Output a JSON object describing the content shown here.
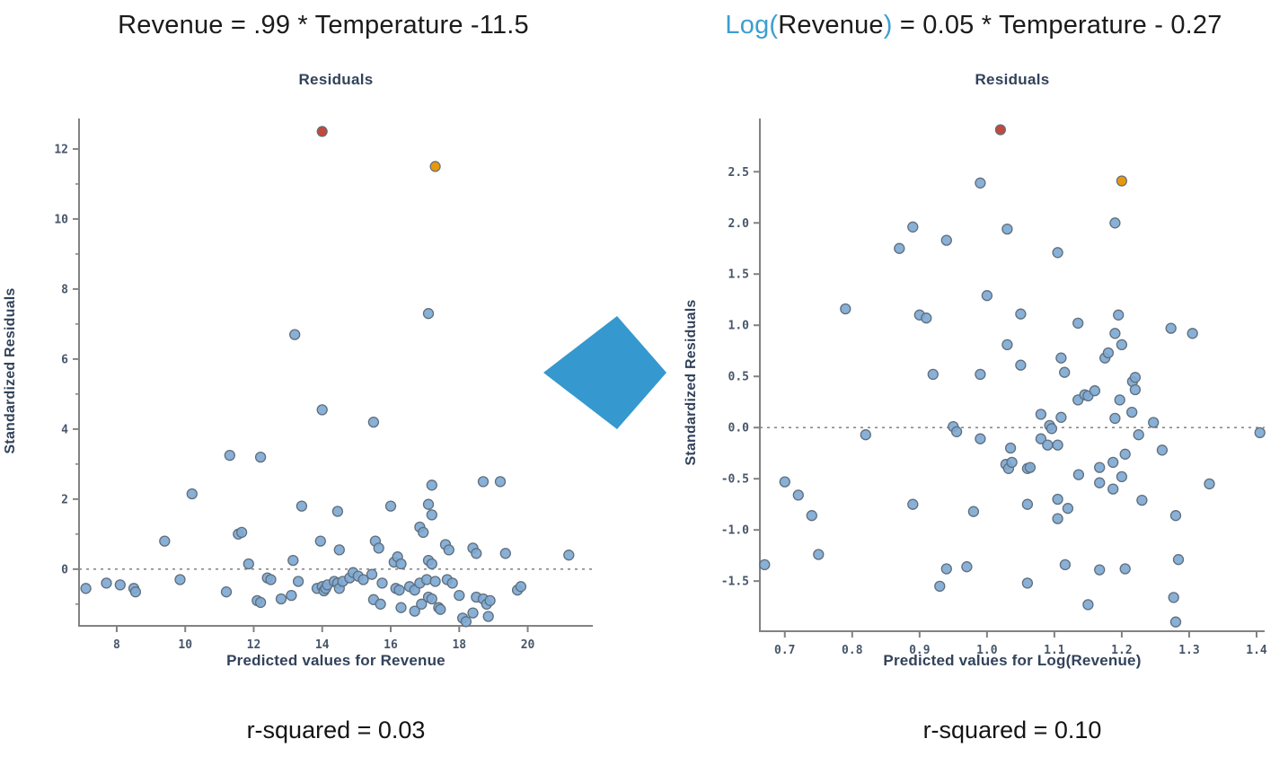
{
  "arrow": {
    "color": "#3598cf",
    "direction": "right"
  },
  "chart_data": [
    {
      "type": "scatter",
      "equation_segments": [
        {
          "text": "Revenue = .99 * Temperature -11.5",
          "color": "#1b1b1b"
        }
      ],
      "title": "Residuals",
      "xlabel": "Predicted values for Revenue",
      "ylabel": "Standardized Residuals",
      "r_squared_value": 0.03,
      "r_squared_text": "r-squared = 0.03",
      "xlim": [
        6.9,
        21.9
      ],
      "ylim": [
        -1.62,
        12.87
      ],
      "grid": false,
      "legend": "none",
      "x_ticks": [
        {
          "v": 8,
          "label": "8"
        },
        {
          "v": 10,
          "label": "10"
        },
        {
          "v": 12,
          "label": "12"
        },
        {
          "v": 14,
          "label": "14"
        },
        {
          "v": 16,
          "label": "16"
        },
        {
          "v": 18,
          "label": "18"
        },
        {
          "v": 20,
          "label": "20"
        }
      ],
      "y_ticks": [
        {
          "v": 0,
          "label": "0"
        },
        {
          "v": 2,
          "label": "2"
        },
        {
          "v": 4,
          "label": "4"
        },
        {
          "v": 6,
          "label": "6"
        },
        {
          "v": 8,
          "label": "8"
        },
        {
          "v": 10,
          "label": "10"
        },
        {
          "v": 12,
          "label": "12"
        }
      ],
      "y_minor_ticks": [
        -1,
        1,
        3,
        5,
        7,
        9,
        11
      ],
      "zero_line_y": 0,
      "style": {
        "point_fill": "#7fa9d3",
        "point_stroke": "#5f6e7c",
        "axis_color": "#828282",
        "tick_label_color": "#47566a",
        "dashed_line_color": "#8a8a8a"
      },
      "highlight_points": [
        {
          "x": 14.0,
          "y": 12.5,
          "color": "#c14a3c",
          "name": "red-outlier"
        },
        {
          "x": 17.3,
          "y": 11.5,
          "color": "#e6980e",
          "name": "orange-outlier"
        }
      ],
      "points": [
        [
          7.1,
          -0.55
        ],
        [
          7.7,
          -0.4
        ],
        [
          8.1,
          -0.45
        ],
        [
          8.5,
          -0.55
        ],
        [
          8.55,
          -0.65
        ],
        [
          9.4,
          0.8
        ],
        [
          9.85,
          -0.3
        ],
        [
          10.2,
          2.15
        ],
        [
          11.2,
          -0.65
        ],
        [
          11.3,
          3.25
        ],
        [
          11.55,
          1.0
        ],
        [
          11.65,
          1.05
        ],
        [
          11.85,
          0.15
        ],
        [
          12.1,
          -0.9
        ],
        [
          12.2,
          -0.95
        ],
        [
          12.2,
          3.2
        ],
        [
          12.4,
          -0.25
        ],
        [
          12.5,
          -0.3
        ],
        [
          12.8,
          -0.85
        ],
        [
          13.1,
          -0.75
        ],
        [
          13.15,
          0.25
        ],
        [
          13.2,
          6.7
        ],
        [
          13.3,
          -0.35
        ],
        [
          13.4,
          1.8
        ],
        [
          13.85,
          -0.55
        ],
        [
          13.95,
          0.8
        ],
        [
          14.0,
          4.55
        ],
        [
          14.0,
          -0.5
        ],
        [
          14.05,
          -0.62
        ],
        [
          14.1,
          -0.55
        ],
        [
          14.15,
          -0.45
        ],
        [
          14.35,
          -0.35
        ],
        [
          14.45,
          -0.4
        ],
        [
          14.45,
          1.65
        ],
        [
          14.5,
          0.55
        ],
        [
          14.5,
          -0.55
        ],
        [
          14.6,
          -0.35
        ],
        [
          14.8,
          -0.25
        ],
        [
          14.9,
          -0.1
        ],
        [
          15.05,
          -0.2
        ],
        [
          15.2,
          -0.3
        ],
        [
          15.45,
          -0.15
        ],
        [
          15.5,
          -0.87
        ],
        [
          15.5,
          4.2
        ],
        [
          15.55,
          0.8
        ],
        [
          15.65,
          0.6
        ],
        [
          15.7,
          -1.0
        ],
        [
          15.75,
          -0.4
        ],
        [
          16.0,
          1.8
        ],
        [
          16.1,
          0.2
        ],
        [
          16.15,
          -0.55
        ],
        [
          16.2,
          0.35
        ],
        [
          16.25,
          -0.6
        ],
        [
          16.3,
          0.15
        ],
        [
          16.3,
          -1.1
        ],
        [
          16.55,
          -0.5
        ],
        [
          16.7,
          -0.6
        ],
        [
          16.7,
          -1.2
        ],
        [
          16.85,
          1.2
        ],
        [
          16.85,
          -0.4
        ],
        [
          16.9,
          -1.0
        ],
        [
          16.95,
          1.05
        ],
        [
          17.05,
          -0.3
        ],
        [
          17.1,
          1.85
        ],
        [
          17.1,
          0.25
        ],
        [
          17.1,
          -0.8
        ],
        [
          17.1,
          7.3
        ],
        [
          17.2,
          2.4
        ],
        [
          17.2,
          1.55
        ],
        [
          17.2,
          0.15
        ],
        [
          17.2,
          -0.85
        ],
        [
          17.3,
          -0.35
        ],
        [
          17.4,
          -1.1
        ],
        [
          17.45,
          -1.15
        ],
        [
          17.6,
          0.7
        ],
        [
          17.65,
          -0.3
        ],
        [
          17.7,
          0.55
        ],
        [
          17.8,
          -0.4
        ],
        [
          18.0,
          -0.75
        ],
        [
          18.1,
          -1.4
        ],
        [
          18.2,
          -1.5
        ],
        [
          18.4,
          0.6
        ],
        [
          18.4,
          -1.25
        ],
        [
          18.5,
          0.45
        ],
        [
          18.5,
          -0.8
        ],
        [
          18.7,
          2.5
        ],
        [
          18.7,
          -0.85
        ],
        [
          18.8,
          -1.0
        ],
        [
          18.85,
          -1.35
        ],
        [
          18.9,
          -0.9
        ],
        [
          19.2,
          2.5
        ],
        [
          19.35,
          0.45
        ],
        [
          19.7,
          -0.6
        ],
        [
          19.8,
          -0.5
        ],
        [
          21.2,
          0.4
        ]
      ]
    },
    {
      "type": "scatter",
      "equation_segments": [
        {
          "text": "Log(",
          "color": "#3d9ecf"
        },
        {
          "text": "Revenue",
          "color": "#1b1b1b"
        },
        {
          "text": ")",
          "color": "#3d9ecf"
        },
        {
          "text": " = 0.05 * Temperature - 0.27",
          "color": "#1b1b1b"
        }
      ],
      "title": "Residuals",
      "xlabel": "Predicted values for Log(Revenue)",
      "ylabel": "Standardized Residuals",
      "r_squared_value": 0.1,
      "r_squared_text": "r-squared = 0.10",
      "xlim": [
        0.663,
        1.412
      ],
      "ylim": [
        -1.99,
        3.02
      ],
      "grid": false,
      "legend": "none",
      "x_ticks": [
        {
          "v": 0.7,
          "label": "0.7"
        },
        {
          "v": 0.8,
          "label": "0.8"
        },
        {
          "v": 0.9,
          "label": "0.9"
        },
        {
          "v": 1.0,
          "label": "1.0"
        },
        {
          "v": 1.1,
          "label": "1.1"
        },
        {
          "v": 1.2,
          "label": "1.2"
        },
        {
          "v": 1.3,
          "label": "1.3"
        },
        {
          "v": 1.4,
          "label": "1.4"
        }
      ],
      "y_ticks": [
        {
          "v": -1.5,
          "label": "-1.5"
        },
        {
          "v": -1.0,
          "label": "-1.0"
        },
        {
          "v": -0.5,
          "label": "-0.5"
        },
        {
          "v": 0.0,
          "label": "0.0"
        },
        {
          "v": 0.5,
          "label": "0.5"
        },
        {
          "v": 1.0,
          "label": "1.0"
        },
        {
          "v": 1.5,
          "label": "1.5"
        },
        {
          "v": 2.0,
          "label": "2.0"
        },
        {
          "v": 2.5,
          "label": "2.5"
        }
      ],
      "y_minor_ticks": [],
      "zero_line_y": 0,
      "style": {
        "point_fill": "#7fa9d3",
        "point_stroke": "#5f6e7c",
        "axis_color": "#828282",
        "tick_label_color": "#47566a",
        "dashed_line_color": "#8a8a8a"
      },
      "highlight_points": [
        {
          "x": 1.02,
          "y": 2.91,
          "color": "#c14a3c",
          "name": "red-outlier"
        },
        {
          "x": 1.2,
          "y": 2.41,
          "color": "#e6980e",
          "name": "orange-outlier"
        }
      ],
      "points": [
        [
          0.67,
          -1.34
        ],
        [
          0.7,
          -0.53
        ],
        [
          0.72,
          -0.66
        ],
        [
          0.74,
          -0.86
        ],
        [
          0.75,
          -1.24
        ],
        [
          0.79,
          1.16
        ],
        [
          0.82,
          -0.07
        ],
        [
          0.87,
          1.75
        ],
        [
          0.89,
          1.96
        ],
        [
          0.89,
          -0.75
        ],
        [
          0.9,
          1.1
        ],
        [
          0.91,
          1.07
        ],
        [
          0.92,
          0.52
        ],
        [
          0.93,
          -1.55
        ],
        [
          0.94,
          -1.38
        ],
        [
          0.94,
          1.83
        ],
        [
          0.95,
          0.01
        ],
        [
          0.955,
          -0.04
        ],
        [
          0.97,
          -1.36
        ],
        [
          0.98,
          -0.82
        ],
        [
          0.99,
          2.39
        ],
        [
          0.99,
          0.52
        ],
        [
          0.99,
          -0.11
        ],
        [
          1.0,
          1.29
        ],
        [
          1.03,
          1.94
        ],
        [
          1.03,
          0.81
        ],
        [
          1.035,
          -0.2
        ],
        [
          1.028,
          -0.36
        ],
        [
          1.032,
          -0.4
        ],
        [
          1.037,
          -0.34
        ],
        [
          1.05,
          1.11
        ],
        [
          1.05,
          0.61
        ],
        [
          1.06,
          -0.4
        ],
        [
          1.06,
          -0.75
        ],
        [
          1.06,
          -1.52
        ],
        [
          1.064,
          -0.39
        ],
        [
          1.08,
          0.13
        ],
        [
          1.08,
          -0.11
        ],
        [
          1.09,
          -0.17
        ],
        [
          1.093,
          0.02
        ],
        [
          1.096,
          -0.01
        ],
        [
          1.105,
          1.71
        ],
        [
          1.105,
          -0.17
        ],
        [
          1.105,
          -0.7
        ],
        [
          1.105,
          -0.89
        ],
        [
          1.11,
          0.68
        ],
        [
          1.11,
          0.1
        ],
        [
          1.115,
          0.54
        ],
        [
          1.116,
          -1.34
        ],
        [
          1.12,
          -0.79
        ],
        [
          1.135,
          1.02
        ],
        [
          1.135,
          0.27
        ],
        [
          1.136,
          -0.46
        ],
        [
          1.145,
          0.32
        ],
        [
          1.15,
          0.31
        ],
        [
          1.15,
          -1.73
        ],
        [
          1.16,
          0.36
        ],
        [
          1.167,
          -0.39
        ],
        [
          1.167,
          -0.54
        ],
        [
          1.167,
          -1.39
        ],
        [
          1.175,
          0.68
        ],
        [
          1.18,
          0.73
        ],
        [
          1.187,
          -0.34
        ],
        [
          1.187,
          -0.6
        ],
        [
          1.19,
          2.0
        ],
        [
          1.19,
          0.92
        ],
        [
          1.19,
          0.09
        ],
        [
          1.195,
          1.1
        ],
        [
          1.197,
          0.27
        ],
        [
          1.2,
          0.81
        ],
        [
          1.2,
          -0.48
        ],
        [
          1.205,
          -0.26
        ],
        [
          1.205,
          -1.38
        ],
        [
          1.215,
          0.15
        ],
        [
          1.216,
          0.45
        ],
        [
          1.22,
          0.49
        ],
        [
          1.22,
          0.37
        ],
        [
          1.225,
          -0.07
        ],
        [
          1.23,
          -0.71
        ],
        [
          1.247,
          0.05
        ],
        [
          1.26,
          -0.22
        ],
        [
          1.273,
          0.97
        ],
        [
          1.277,
          -1.66
        ],
        [
          1.28,
          -0.86
        ],
        [
          1.28,
          -1.9
        ],
        [
          1.284,
          -1.29
        ],
        [
          1.305,
          0.92
        ],
        [
          1.33,
          -0.55
        ],
        [
          1.405,
          -0.05
        ]
      ]
    }
  ]
}
